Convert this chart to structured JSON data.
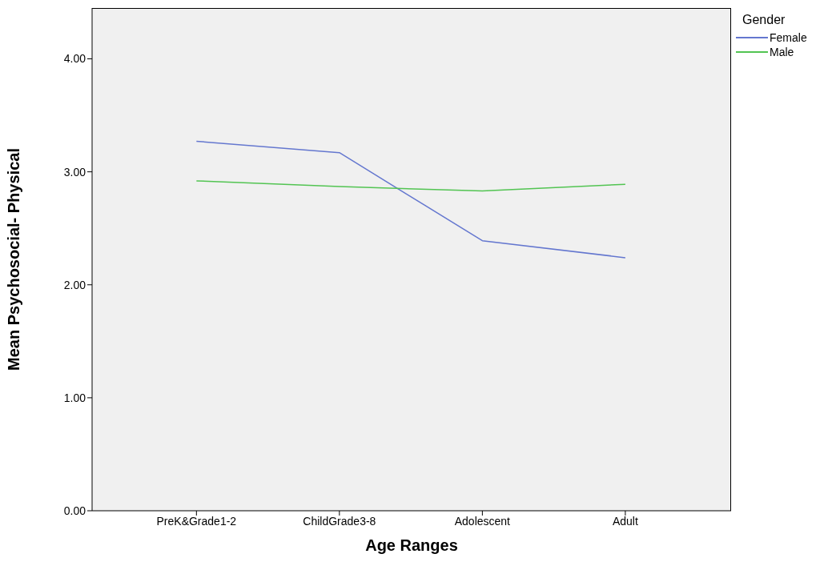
{
  "chart_data": {
    "type": "line",
    "xlabel": "Age Ranges",
    "ylabel": "Mean Psychosocial- Physical",
    "legend_title": "Gender",
    "categories": [
      "PreK&Grade1-2",
      "ChildGrade3-8",
      "Adolescent",
      "Adult"
    ],
    "series": [
      {
        "name": "Female",
        "color": "#6477cf",
        "values": [
          3.27,
          3.17,
          2.39,
          2.24
        ]
      },
      {
        "name": "Male",
        "color": "#52c452",
        "values": [
          2.92,
          2.87,
          2.83,
          2.89
        ]
      }
    ],
    "ylim": [
      0,
      4.45
    ],
    "yticks": [
      {
        "value": 0,
        "label": "0.00"
      },
      {
        "value": 1,
        "label": "1.00"
      },
      {
        "value": 2,
        "label": "2.00"
      },
      {
        "value": 3,
        "label": "3.00"
      },
      {
        "value": 4,
        "label": "4.00"
      }
    ],
    "grid": false,
    "legend": "top right",
    "marker": "none",
    "line_style": "solid"
  }
}
